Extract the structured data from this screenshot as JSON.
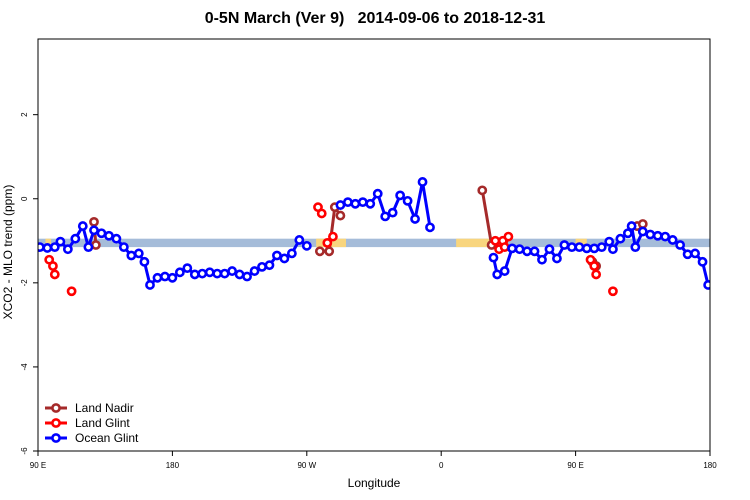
{
  "chart_data": {
    "type": "line",
    "title": "0-5N March (Ver 9)   2014-09-06 to 2018-12-31",
    "xlabel": "Longitude",
    "ylabel": "XCO2 - MLO trend (ppm)",
    "xlim": [
      -90,
      270
    ],
    "ylim": [
      -6,
      3.8
    ],
    "x_ticks": [
      {
        "value": -90,
        "label": "90 E"
      },
      {
        "value": -18,
        "label": "180"
      },
      {
        "value": 54,
        "label": "90 W"
      },
      {
        "value": 126,
        "label": "0"
      },
      {
        "value": 198,
        "label": "90 E"
      },
      {
        "value": 270,
        "label": "180"
      }
    ],
    "y_ticks": [
      -6,
      -4,
      -2,
      0,
      2
    ],
    "grid": false,
    "legend_position": "bottom-left",
    "legend": [
      {
        "label": "Land Nadir",
        "color": "#a52a2a"
      },
      {
        "label": "Land Glint",
        "color": "#ff0000"
      },
      {
        "label": "Ocean Glint",
        "color": "#0000ff"
      }
    ],
    "band": {
      "y_center": -1.05,
      "y_halfwidth": 0.1,
      "color": "#a5bcd9",
      "highlight_color": "#f8d57e",
      "highlight_ranges": [
        [
          -86,
          -83
        ],
        [
          59,
          75
        ],
        [
          134,
          154
        ],
        [
          198,
          204
        ]
      ]
    },
    "series": [
      {
        "name": "Land Nadir",
        "color": "#a52a2a",
        "segments": [
          [
            [
              -60,
              -0.55
            ],
            [
              -59,
              -1.1
            ]
          ],
          [
            [
              61,
              -1.25
            ]
          ],
          [
            [
              66,
              -1.25
            ],
            [
              69,
              -0.2
            ],
            [
              72,
              -0.4
            ]
          ],
          [
            [
              148,
              0.2
            ],
            [
              153,
              -1.1
            ]
          ],
          [
            [
              207,
              -1.5
            ],
            [
              209,
              -1.6
            ]
          ],
          [
            [
              231,
              -0.65
            ],
            [
              234,
              -0.6
            ]
          ]
        ]
      },
      {
        "name": "Land Glint",
        "color": "#ff0000",
        "segments": [
          [
            [
              -84,
              -1.45
            ],
            [
              -82,
              -1.6
            ],
            [
              -81,
              -1.8
            ]
          ],
          [
            [
              -72,
              -2.2
            ]
          ],
          [
            [
              60,
              -0.2
            ],
            [
              62,
              -0.35
            ]
          ],
          [
            [
              65,
              -1.05
            ]
          ],
          [
            [
              68,
              -0.9
            ]
          ],
          [
            [
              155,
              -1.0
            ],
            [
              157,
              -1.2
            ],
            [
              159,
              -1.0
            ],
            [
              160,
              -1.15
            ],
            [
              162,
              -0.9
            ]
          ],
          [
            [
              206,
              -1.45
            ],
            [
              208,
              -1.6
            ],
            [
              209,
              -1.8
            ]
          ],
          [
            [
              218,
              -2.2
            ]
          ]
        ]
      },
      {
        "name": "Ocean Glint",
        "color": "#0000ff",
        "segments": [
          [
            [
              -89,
              -1.15
            ],
            [
              -85,
              -1.17
            ],
            [
              -81,
              -1.15
            ],
            [
              -78,
              -1.02
            ],
            [
              -74,
              -1.2
            ],
            [
              -70,
              -0.95
            ],
            [
              -66,
              -0.65
            ],
            [
              -63,
              -1.15
            ],
            [
              -60,
              -0.75
            ],
            [
              -56,
              -0.82
            ],
            [
              -52,
              -0.88
            ],
            [
              -48,
              -0.95
            ],
            [
              -44,
              -1.15
            ],
            [
              -40,
              -1.35
            ],
            [
              -36,
              -1.3
            ],
            [
              -33,
              -1.5
            ],
            [
              -30,
              -2.05
            ],
            [
              -26,
              -1.88
            ],
            [
              -22,
              -1.85
            ],
            [
              -18,
              -1.88
            ],
            [
              -14,
              -1.75
            ],
            [
              -10,
              -1.65
            ],
            [
              -6,
              -1.8
            ],
            [
              -2,
              -1.78
            ],
            [
              2,
              -1.75
            ],
            [
              6,
              -1.78
            ],
            [
              10,
              -1.78
            ],
            [
              14,
              -1.72
            ],
            [
              18,
              -1.8
            ],
            [
              22,
              -1.85
            ],
            [
              26,
              -1.72
            ],
            [
              30,
              -1.62
            ],
            [
              34,
              -1.58
            ],
            [
              38,
              -1.35
            ],
            [
              42,
              -1.42
            ],
            [
              46,
              -1.3
            ],
            [
              50,
              -0.98
            ],
            [
              54,
              -1.12
            ]
          ],
          [
            [
              72,
              -0.15
            ],
            [
              76,
              -0.08
            ],
            [
              80,
              -0.12
            ],
            [
              84,
              -0.08
            ],
            [
              88,
              -0.12
            ],
            [
              92,
              0.12
            ],
            [
              96,
              -0.42
            ],
            [
              100,
              -0.33
            ],
            [
              104,
              0.08
            ],
            [
              108,
              -0.05
            ],
            [
              112,
              -0.48
            ],
            [
              116,
              0.4
            ],
            [
              120,
              -0.68
            ]
          ],
          [
            [
              154,
              -1.4
            ],
            [
              156,
              -1.8
            ],
            [
              160,
              -1.72
            ],
            [
              164,
              -1.18
            ],
            [
              168,
              -1.2
            ],
            [
              172,
              -1.25
            ],
            [
              176,
              -1.25
            ],
            [
              180,
              -1.45
            ],
            [
              184,
              -1.2
            ],
            [
              188,
              -1.42
            ],
            [
              192,
              -1.1
            ],
            [
              196,
              -1.15
            ],
            [
              200,
              -1.15
            ],
            [
              204,
              -1.18
            ],
            [
              208,
              -1.18
            ],
            [
              212,
              -1.15
            ],
            [
              216,
              -1.02
            ],
            [
              218,
              -1.2
            ],
            [
              222,
              -0.95
            ],
            [
              226,
              -0.82
            ],
            [
              228,
              -0.65
            ],
            [
              230,
              -1.15
            ],
            [
              234,
              -0.78
            ],
            [
              238,
              -0.85
            ],
            [
              242,
              -0.88
            ],
            [
              246,
              -0.9
            ],
            [
              250,
              -0.98
            ],
            [
              254,
              -1.1
            ],
            [
              258,
              -1.32
            ],
            [
              262,
              -1.3
            ],
            [
              266,
              -1.5
            ],
            [
              269,
              -2.05
            ]
          ]
        ]
      }
    ]
  }
}
